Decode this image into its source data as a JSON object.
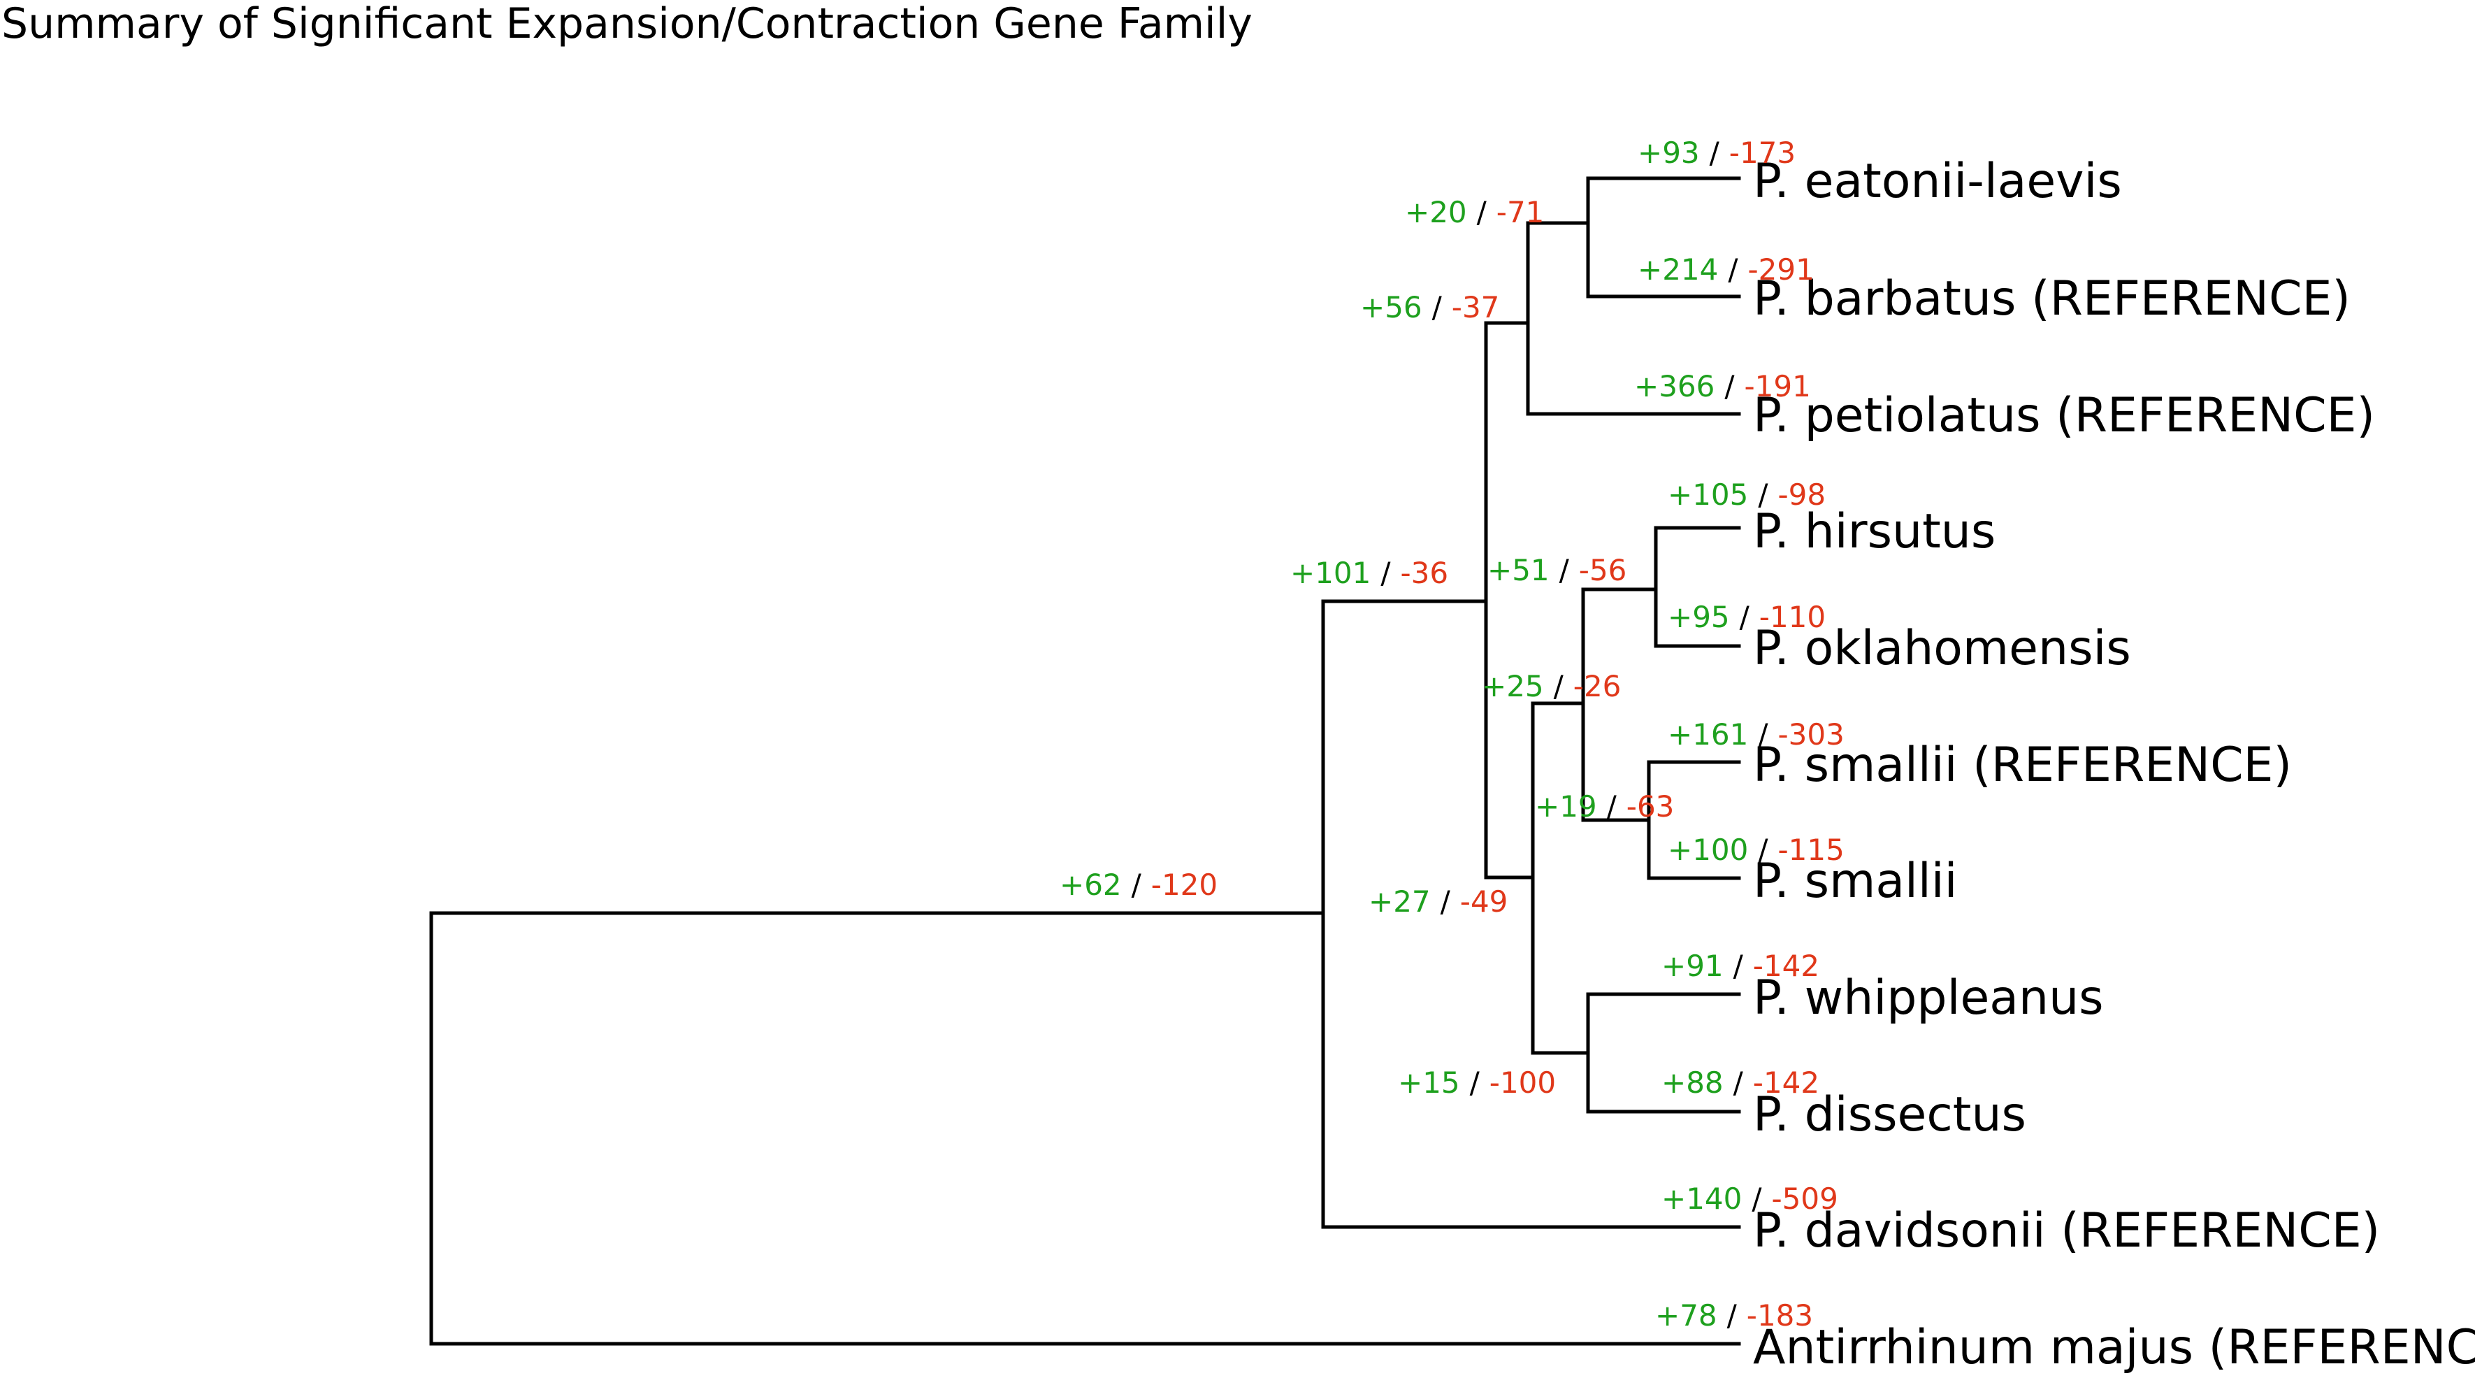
{
  "title": "Summary of Significant Expansion/Contraction Gene Family",
  "colors": {
    "gain": "#1ea01e",
    "loss": "#e0381a",
    "line": "#000000",
    "background": "#ffffff"
  },
  "leaves": [
    {
      "name": "P. eatonii-laevis",
      "gain": "+93",
      "loss": "-173"
    },
    {
      "name": "P. barbatus (REFERENCE)",
      "gain": "+214",
      "loss": "-291"
    },
    {
      "name": "P. petiolatus (REFERENCE)",
      "gain": "+366",
      "loss": "-191"
    },
    {
      "name": "P. hirsutus",
      "gain": "+105",
      "loss": "-98"
    },
    {
      "name": "P. oklahomensis",
      "gain": "+95",
      "loss": "-110"
    },
    {
      "name": "P. smallii (REFERENCE)",
      "gain": "+161",
      "loss": "-303"
    },
    {
      "name": "P. smallii",
      "gain": "+100",
      "loss": "-115"
    },
    {
      "name": "P. whippleanus",
      "gain": "+91",
      "loss": "-142"
    },
    {
      "name": "P. dissectus",
      "gain": "+88",
      "loss": "-142"
    },
    {
      "name": "P. davidsonii (REFERENCE)",
      "gain": "+140",
      "loss": "-509"
    },
    {
      "name": "Antirrhinum majus (REFERENCE)",
      "gain": "+78",
      "loss": "-183"
    }
  ],
  "internal_nodes": [
    {
      "id": "eatonii_barbatus",
      "gain": "+20",
      "loss": "-71"
    },
    {
      "id": "eatonii_barbatus_petiolatus",
      "gain": "+56",
      "loss": "-37"
    },
    {
      "id": "hirsutus_oklahomensis",
      "gain": "+51",
      "loss": "-56"
    },
    {
      "id": "smallii_pair",
      "gain": "+19",
      "loss": "-63"
    },
    {
      "id": "hirsutus_to_smallii",
      "gain": "+25",
      "loss": "-26"
    },
    {
      "id": "whippleanus_dissectus",
      "gain": "+15",
      "loss": "-100"
    },
    {
      "id": "hirsutus_to_dissectus",
      "gain": "+27",
      "loss": "-49"
    },
    {
      "id": "penstemon_core",
      "gain": "+101",
      "loss": "-36"
    },
    {
      "id": "penstemon_all",
      "gain": "+62",
      "loss": "-120"
    }
  ],
  "separator": "/"
}
